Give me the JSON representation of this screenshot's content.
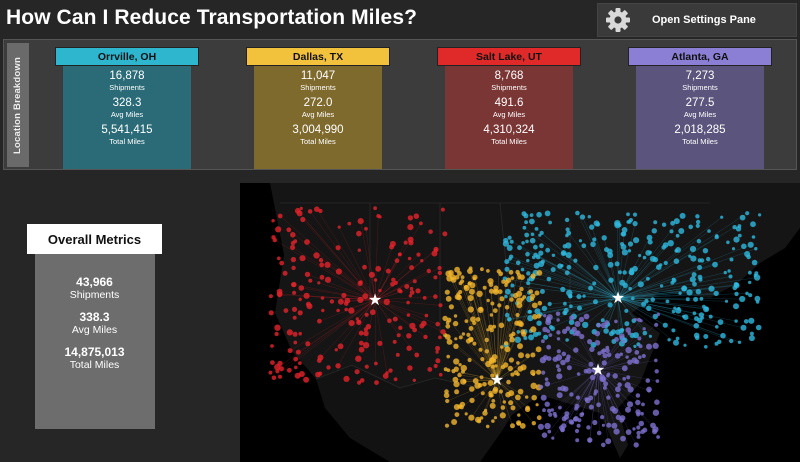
{
  "header": {
    "title": "How Can I Reduce Transportation Miles?"
  },
  "settings": {
    "label": "Open Settings Pane",
    "icon": "gear-icon"
  },
  "location_panel": {
    "tab_label": "Location Breakdown",
    "locations": [
      {
        "name": "Orrville, OH",
        "head_color": "#2fb6cf",
        "body_color": "#2a6b77",
        "dot_color": "#2eb9de",
        "shipments": "16,878",
        "shipments_label": "Shipments",
        "avg_miles": "328.3",
        "avg_miles_label": "Avg Miles",
        "total_miles": "5,541,415",
        "total_miles_label": "Total Miles"
      },
      {
        "name": "Dallas, TX",
        "head_color": "#f2c23c",
        "body_color": "#7f6a2e",
        "dot_color": "#f3b52c",
        "shipments": "11,047",
        "shipments_label": "Shipments",
        "avg_miles": "272.0",
        "avg_miles_label": "Avg Miles",
        "total_miles": "3,004,990",
        "total_miles_label": "Total Miles"
      },
      {
        "name": "Salt Lake, UT",
        "head_color": "#e02a2a",
        "body_color": "#7a3535",
        "dot_color": "#e3232a",
        "shipments": "8,768",
        "shipments_label": "Shipments",
        "avg_miles": "491.6",
        "avg_miles_label": "Avg Miles",
        "total_miles": "4,310,324",
        "total_miles_label": "Total Miles"
      },
      {
        "name": "Atlanta, GA",
        "head_color": "#8a7fd4",
        "body_color": "#5b557d",
        "dot_color": "#7d70cf",
        "shipments": "7,273",
        "shipments_label": "Shipments",
        "avg_miles": "277.5",
        "avg_miles_label": "Avg Miles",
        "total_miles": "2,018,285",
        "total_miles_label": "Total Miles"
      }
    ]
  },
  "overall": {
    "title": "Overall Metrics",
    "shipments": "43,966",
    "shipments_label": "Shipments",
    "avg_miles": "338.3",
    "avg_miles_label": "Avg Miles",
    "total_miles": "14,875,013",
    "total_miles_label": "Total Miles"
  }
}
